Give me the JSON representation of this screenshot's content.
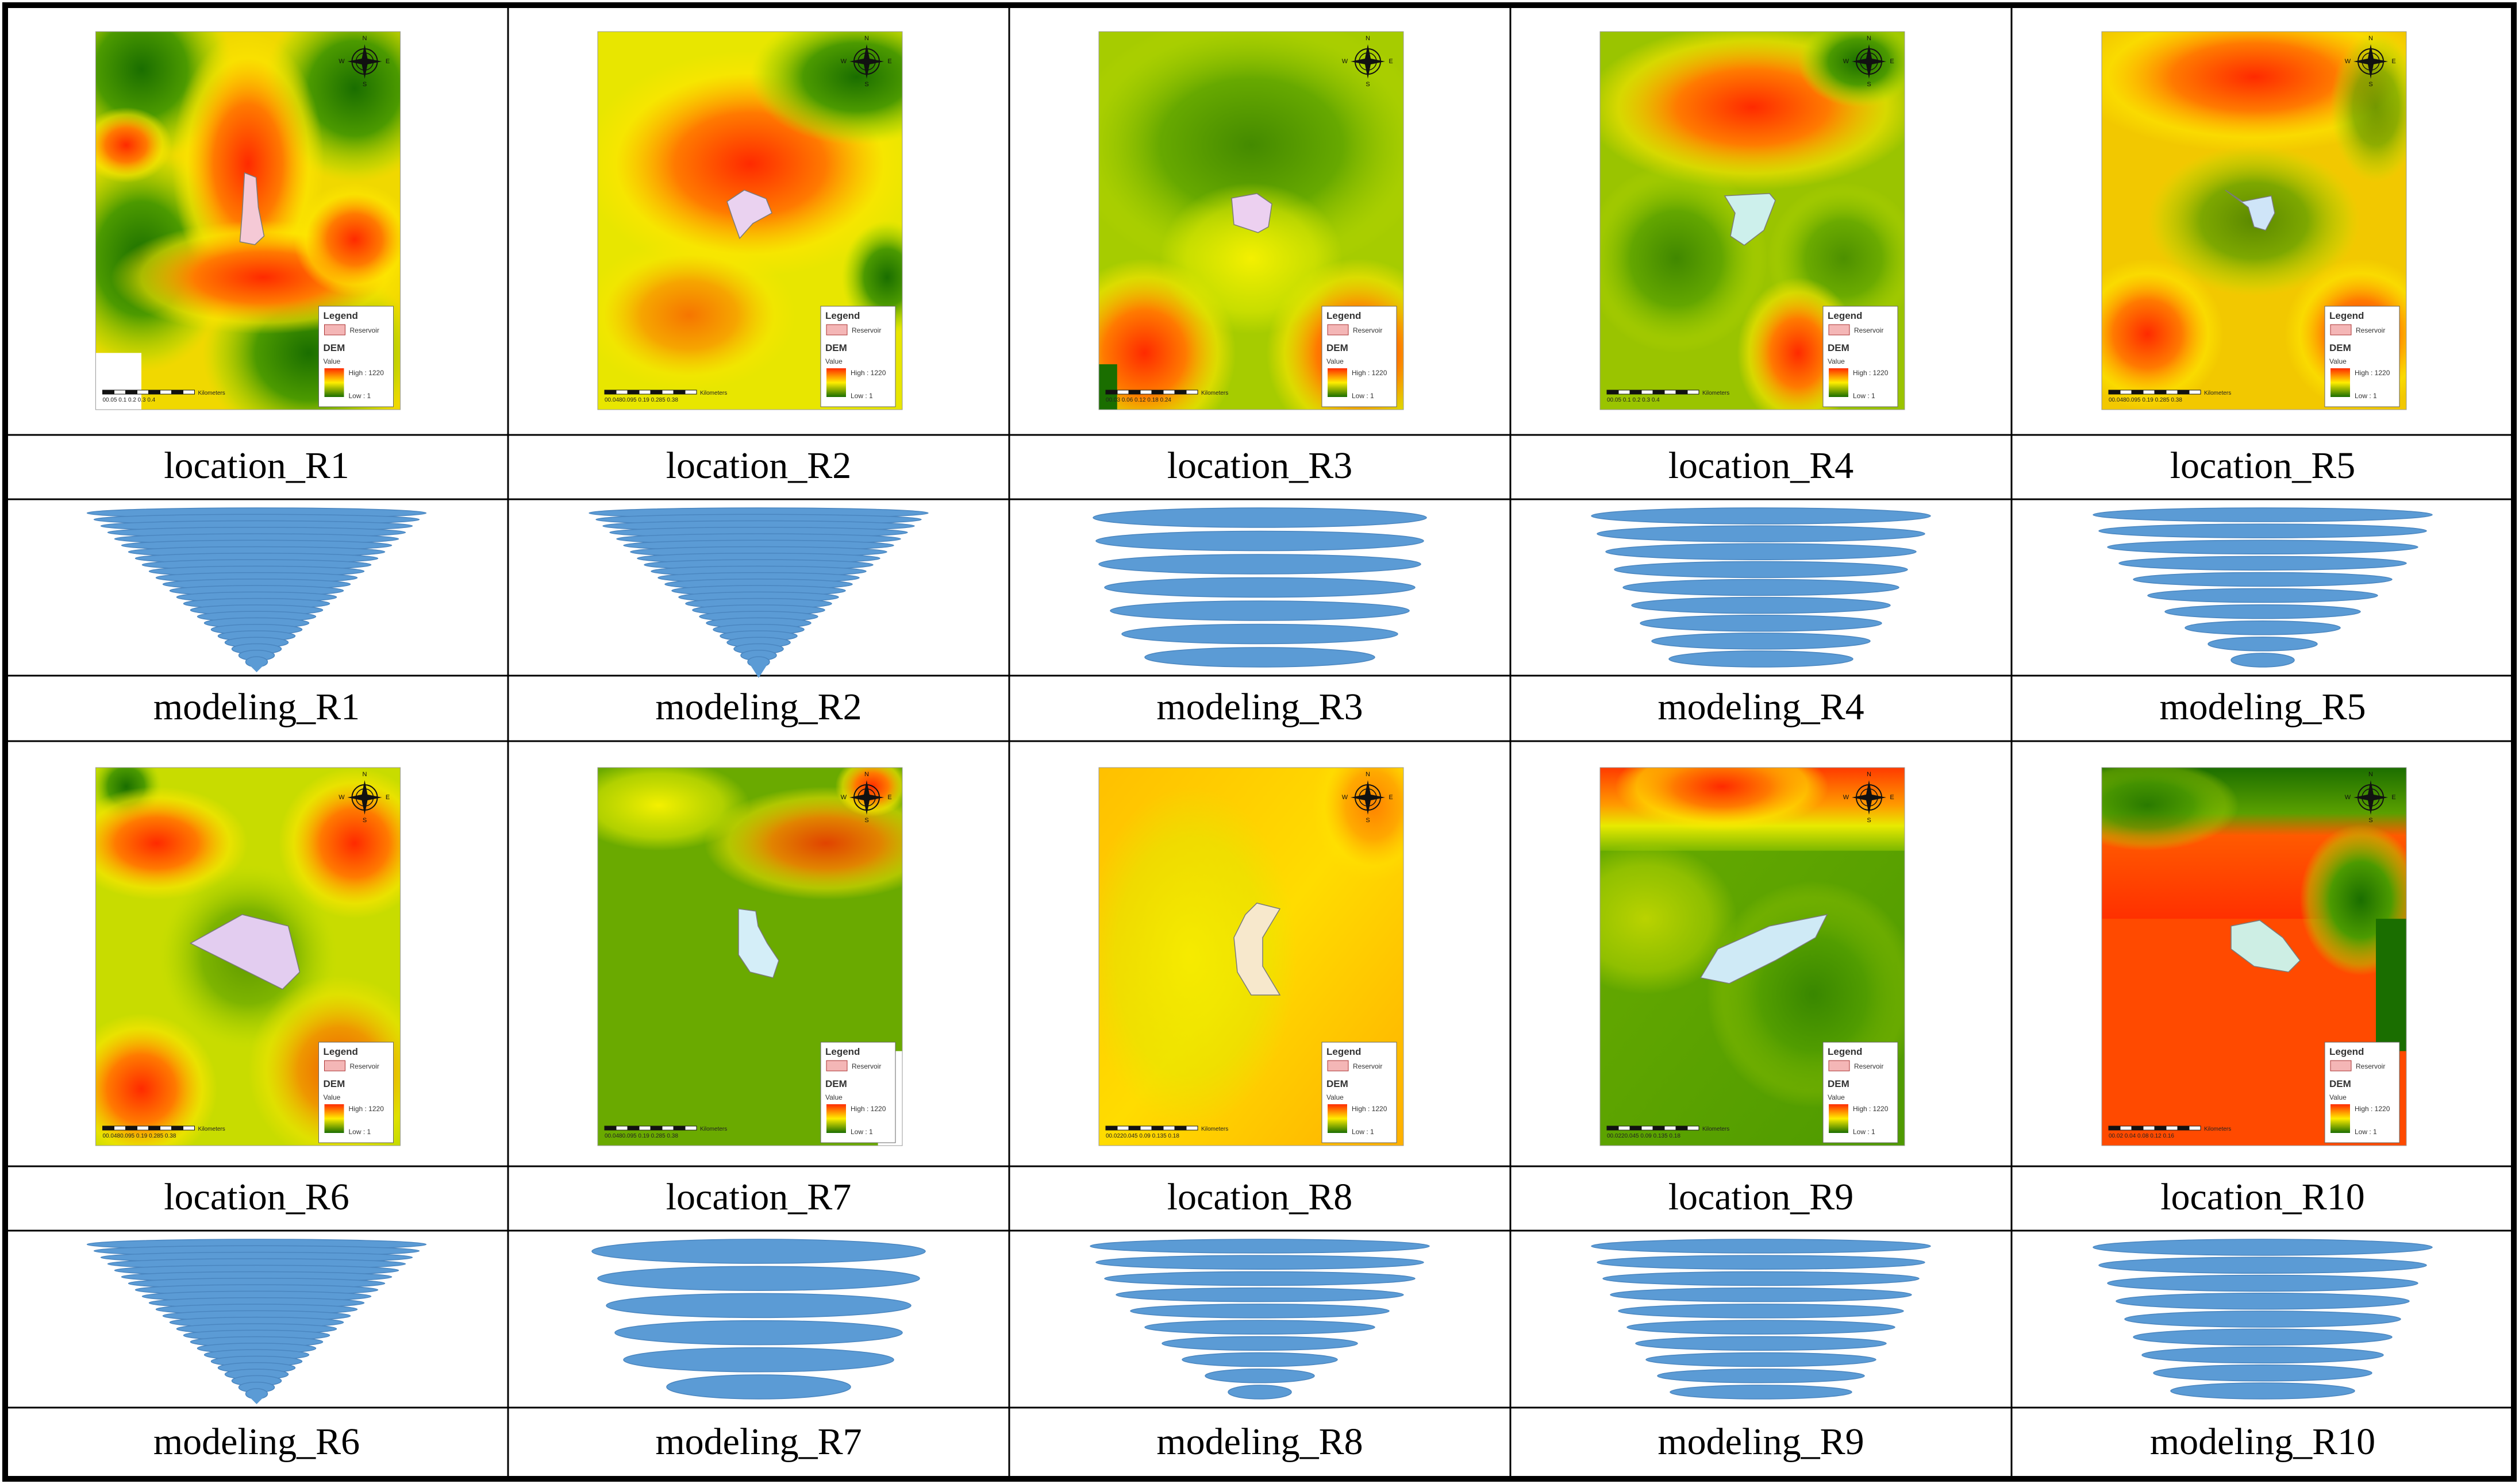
{
  "colors": {
    "border": "#000000",
    "ellipse_fill": "#5b9bd5",
    "ellipse_stroke": "#4a86c0",
    "dem_high": "#ff2a00",
    "dem_mid": "#ffee00",
    "dem_low": "#1a6e00",
    "reservoir_legend": "#f4b6b6"
  },
  "legend": {
    "title": "Legend",
    "reservoir": "Reservoir",
    "dem": "DEM",
    "value": "Value",
    "high": "High : 1220",
    "low": "Low : 1",
    "compass": {
      "n": "N",
      "s": "S",
      "e": "E",
      "w": "W"
    }
  },
  "rows": [
    {
      "locations": [
        {
          "label": "location_R1",
          "scale": "00.05 0.1  0.2  0.3  0.4",
          "scale_unit": "Kilometers",
          "reservoir_color": "#f5c9d6",
          "map_style": "ridges"
        },
        {
          "label": "location_R2",
          "scale": "00.0480.095 0.19  0.285  0.38",
          "scale_unit": "Kilometers",
          "reservoir_color": "#ead2f0",
          "map_style": "red-top-green"
        },
        {
          "label": "location_R3",
          "scale": "00.03 0.06 0.12  0.18  0.24",
          "scale_unit": "Kilometers",
          "reservoir_color": "#ecd0f0",
          "map_style": "green-red-corner"
        },
        {
          "label": "location_R4",
          "scale": "00.05 0.1  0.2  0.3  0.4",
          "scale_unit": "Kilometers",
          "reservoir_color": "#cdf0ec",
          "map_style": "green-red-band"
        },
        {
          "label": "location_R5",
          "scale": "00.0480.095 0.19  0.285  0.38",
          "scale_unit": "Kilometers",
          "reservoir_color": "#cfe5f8",
          "map_style": "red-green-mix"
        }
      ],
      "modelings": [
        {
          "label": "modeling_R1",
          "style": "cone-dense"
        },
        {
          "label": "modeling_R2",
          "style": "cone-dense-tail"
        },
        {
          "label": "modeling_R3",
          "style": "stack-7-wide"
        },
        {
          "label": "modeling_R4",
          "style": "funnel-9"
        },
        {
          "label": "modeling_R5",
          "style": "funnel-10"
        }
      ]
    },
    {
      "locations": [
        {
          "label": "location_R6",
          "scale": "00.0480.095 0.19  0.285  0.38",
          "scale_unit": "Kilometers",
          "reservoir_color": "#e3cdf0",
          "map_style": "green-red-spots"
        },
        {
          "label": "location_R7",
          "scale": "00.0480.095 0.19  0.285  0.38",
          "scale_unit": "Kilometers",
          "reservoir_color": "#d4eef8",
          "map_style": "green-red-diag"
        },
        {
          "label": "location_R8",
          "scale": "00.0220.045 0.09  0.135  0.18",
          "scale_unit": "Kilometers",
          "reservoir_color": "#f7e8cc",
          "map_style": "orange-yellow"
        },
        {
          "label": "location_R9",
          "scale": "00.0220.045 0.09  0.135  0.18",
          "scale_unit": "Kilometers",
          "reservoir_color": "#cfeaf6",
          "map_style": "orange-top-green"
        },
        {
          "label": "location_R10",
          "scale": "00.02 0.04 0.08  0.12  0.16",
          "scale_unit": "Kilometers",
          "reservoir_color": "#cdeee4",
          "map_style": "green-top-red"
        }
      ],
      "modelings": [
        {
          "label": "modeling_R6",
          "style": "cone-dense"
        },
        {
          "label": "modeling_R7",
          "style": "stack-6-big"
        },
        {
          "label": "modeling_R8",
          "style": "funnel-10"
        },
        {
          "label": "modeling_R9",
          "style": "funnel-10-even"
        },
        {
          "label": "modeling_R10",
          "style": "funnel-9"
        }
      ]
    }
  ]
}
